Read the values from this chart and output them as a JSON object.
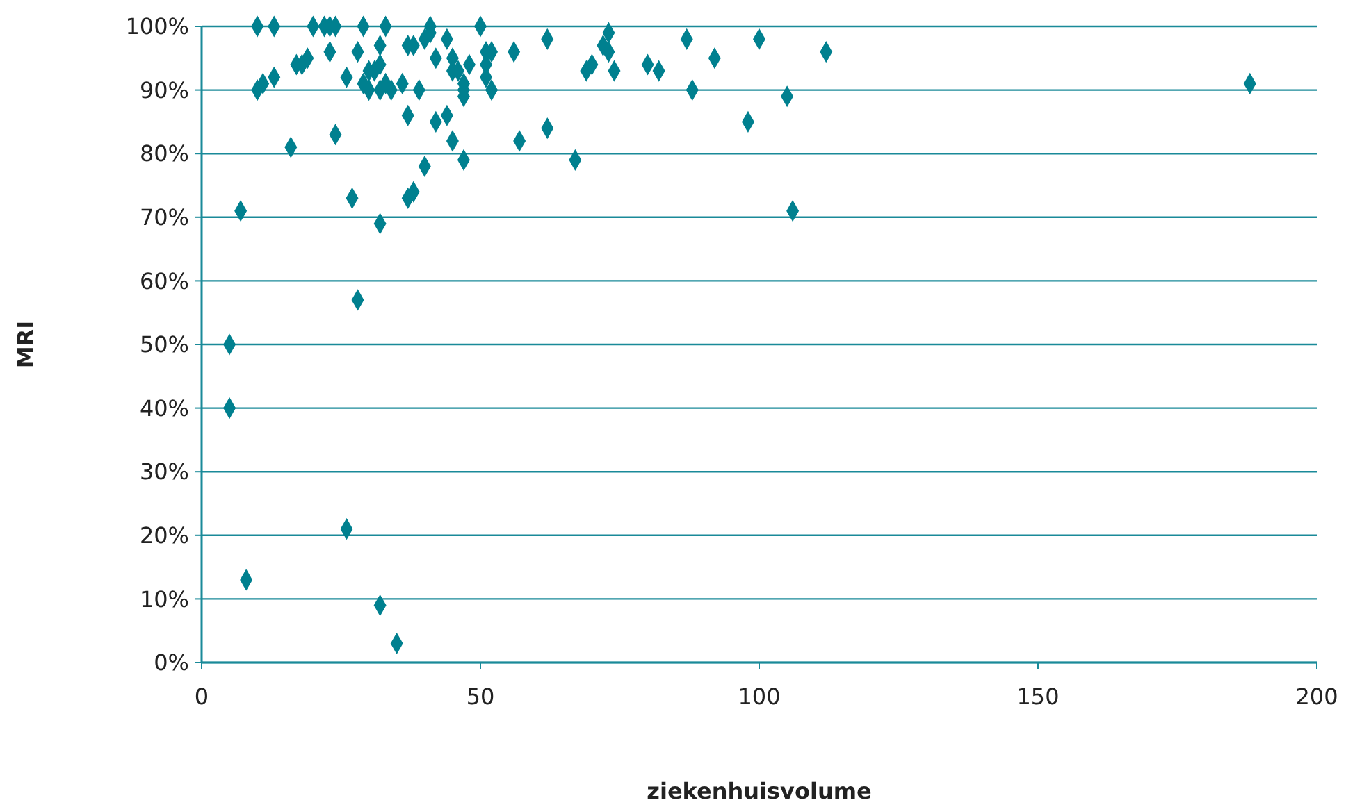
{
  "chart_data": {
    "type": "scatter",
    "xlabel": "ziekenhuisvolume",
    "ylabel": "MRI",
    "xlim": [
      0,
      200
    ],
    "xticks": [
      0,
      50,
      100,
      150,
      200
    ],
    "ylim": [
      0,
      100
    ],
    "yticks": [
      {
        "value": 0,
        "label": "0%"
      },
      {
        "value": 10,
        "label": "10%"
      },
      {
        "value": 20,
        "label": "20%"
      },
      {
        "value": 30,
        "label": "30%"
      },
      {
        "value": 40,
        "label": "40%"
      },
      {
        "value": 50,
        "label": "50%"
      },
      {
        "value": 60,
        "label": "60%"
      },
      {
        "value": 70,
        "label": "70%"
      },
      {
        "value": 80,
        "label": "80%"
      },
      {
        "value": 90,
        "label": "90%"
      },
      {
        "value": 100,
        "label": "100%"
      }
    ],
    "grid": "y",
    "marker": "diamond",
    "series": [
      {
        "color": "#00808f",
        "x": [
          10,
          13,
          20,
          22,
          23,
          24,
          29,
          33,
          41,
          50,
          11,
          10,
          13,
          16,
          17,
          18,
          19,
          23,
          24,
          26,
          27,
          28,
          28,
          29,
          30,
          30,
          31,
          32,
          32,
          32,
          32,
          33,
          34,
          36,
          37,
          37,
          37,
          38,
          38,
          39,
          40,
          40,
          41,
          42,
          42,
          44,
          44,
          45,
          45,
          45,
          46,
          47,
          47,
          47,
          47,
          48,
          51,
          51,
          51,
          52,
          52,
          56,
          57,
          62,
          62,
          67,
          69,
          70,
          72,
          73,
          73,
          74,
          80,
          82,
          87,
          88,
          92,
          98,
          100,
          105,
          106,
          112,
          188,
          5,
          5,
          7,
          8,
          26,
          32,
          35
        ],
        "values": [
          100,
          100,
          100,
          100,
          100,
          100,
          100,
          100,
          100,
          100,
          91,
          90,
          92,
          81,
          94,
          94,
          95,
          96,
          83,
          92,
          73,
          96,
          57,
          91,
          90,
          93,
          93,
          94,
          97,
          90,
          69,
          91,
          90,
          91,
          97,
          86,
          73,
          74,
          97,
          90,
          78,
          98,
          99,
          85,
          95,
          98,
          86,
          95,
          93,
          82,
          93,
          79,
          89,
          91,
          90,
          94,
          96,
          94,
          92,
          90,
          96,
          96,
          82,
          98,
          84,
          79,
          93,
          94,
          97,
          99,
          96,
          93,
          94,
          93,
          98,
          90,
          95,
          85,
          98,
          89,
          71,
          96,
          91,
          50,
          40,
          71,
          13,
          21,
          9,
          3
        ]
      }
    ]
  }
}
